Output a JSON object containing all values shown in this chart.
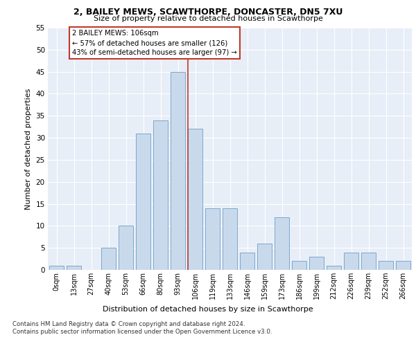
{
  "title1": "2, BAILEY MEWS, SCAWTHORPE, DONCASTER, DN5 7XU",
  "title2": "Size of property relative to detached houses in Scawthorpe",
  "xlabel": "Distribution of detached houses by size in Scawthorpe",
  "ylabel": "Number of detached properties",
  "bin_labels": [
    "0sqm",
    "13sqm",
    "27sqm",
    "40sqm",
    "53sqm",
    "66sqm",
    "80sqm",
    "93sqm",
    "106sqm",
    "119sqm",
    "133sqm",
    "146sqm",
    "159sqm",
    "173sqm",
    "186sqm",
    "199sqm",
    "212sqm",
    "226sqm",
    "239sqm",
    "252sqm",
    "266sqm"
  ],
  "bar_heights": [
    1,
    1,
    0,
    5,
    10,
    31,
    34,
    45,
    32,
    14,
    14,
    4,
    6,
    12,
    2,
    3,
    1,
    4,
    4,
    2,
    2
  ],
  "bar_color": "#c9d9ec",
  "bar_edge_color": "#7ba7cc",
  "highlight_index": 8,
  "vline_color": "#c0392b",
  "annotation_text": "2 BAILEY MEWS: 106sqm\n← 57% of detached houses are smaller (126)\n43% of semi-detached houses are larger (97) →",
  "annotation_box_color": "white",
  "annotation_box_edge": "#c0392b",
  "ylim": [
    0,
    55
  ],
  "yticks": [
    0,
    5,
    10,
    15,
    20,
    25,
    30,
    35,
    40,
    45,
    50,
    55
  ],
  "plot_bg": "#e8eef7",
  "grid_color": "#ffffff",
  "footer1": "Contains HM Land Registry data © Crown copyright and database right 2024.",
  "footer2": "Contains public sector information licensed under the Open Government Licence v3.0."
}
